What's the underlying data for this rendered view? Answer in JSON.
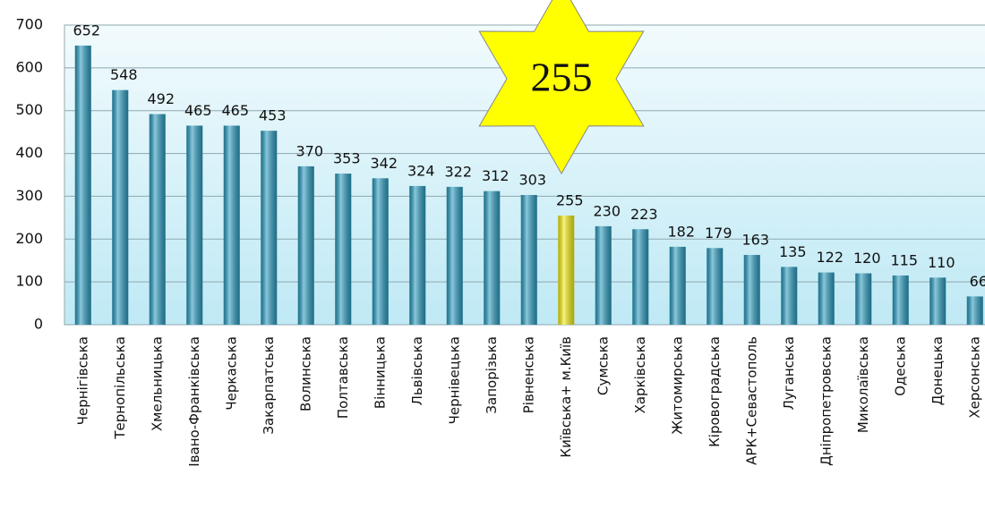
{
  "chart_data": {
    "type": "bar",
    "categories": [
      "Чернігівська",
      "Тернопільська",
      "Хмельницька",
      "Івано-Франківська",
      "Черкаська",
      "Закарпатська",
      "Волинська",
      "Полтавська",
      "Вінницька",
      "Львівська",
      "Чернівецька",
      "Запорізька",
      "Рівненська",
      "Київська+ м.Київ",
      "Сумська",
      "Харківська",
      "Житомирська",
      "Кіровоградська",
      "АРК+Севастополь",
      "Луганська",
      "Дніпропетровська",
      "Миколаївська",
      "Одеська",
      "Донецька",
      "Херсонська"
    ],
    "values": [
      652,
      548,
      492,
      465,
      465,
      453,
      370,
      353,
      342,
      324,
      322,
      312,
      303,
      255,
      230,
      223,
      182,
      179,
      163,
      135,
      122,
      120,
      115,
      110,
      66
    ],
    "bar_colors": [
      "#2a9cc0",
      "#2a9cc0",
      "#2a9cc0",
      "#2a9cc0",
      "#2a9cc0",
      "#2a9cc0",
      "#2a9cc0",
      "#2a9cc0",
      "#2a9cc0",
      "#2a9cc0",
      "#2a9cc0",
      "#2a9cc0",
      "#2a9cc0",
      "#f5ee10",
      "#2a9cc0",
      "#2a9cc0",
      "#2a9cc0",
      "#2a9cc0",
      "#2a9cc0",
      "#2a9cc0",
      "#2a9cc0",
      "#2a9cc0",
      "#2a9cc0",
      "#2a9cc0",
      "#2a9cc0"
    ],
    "annotation": "255",
    "ylim": [
      0,
      700
    ],
    "yticks": [
      0,
      100,
      200,
      300,
      400,
      500,
      600,
      700
    ],
    "grid": true
  }
}
